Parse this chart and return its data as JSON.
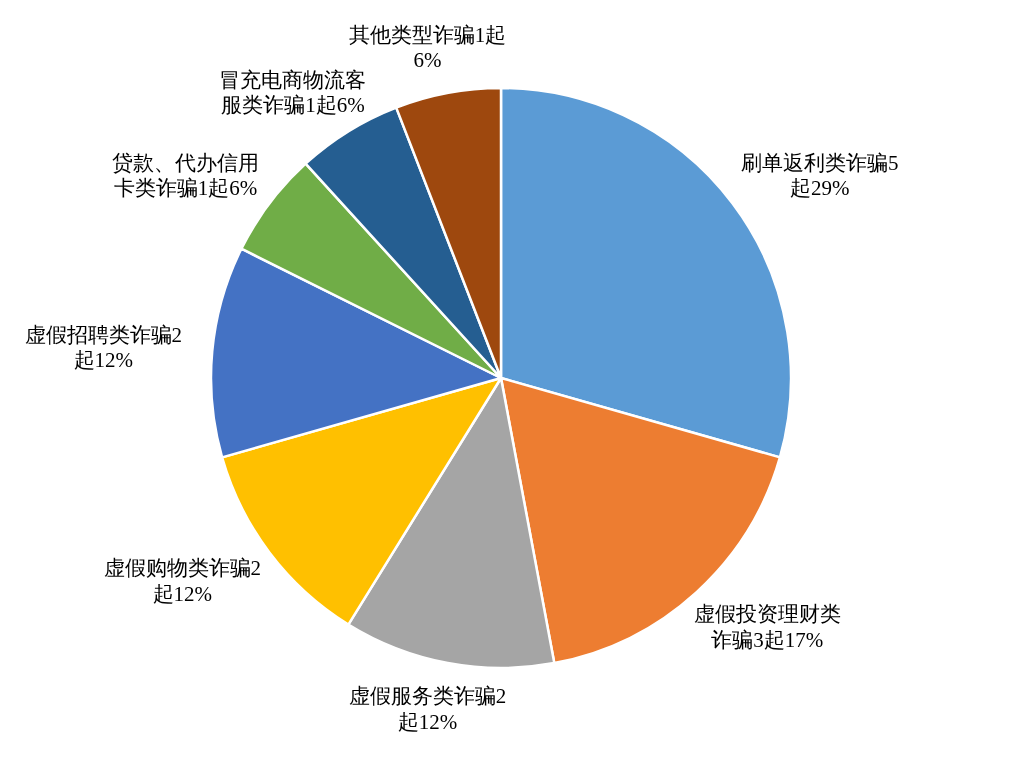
{
  "chart_data": {
    "type": "pie",
    "categories": [
      "刷单返利类诈骗5起29%",
      "虚假投资理财类诈骗3起17%",
      "虚假服务类诈骗2起12%",
      "虚假购物类诈骗2起12%",
      "虚假招聘类诈骗2起12%",
      "贷款、代办信用卡类诈骗1起6%",
      "冒充电商物流客服类诈骗1起6%",
      "其他类型诈骗1起6%"
    ],
    "values": [
      5,
      3,
      2,
      2,
      2,
      1,
      1,
      1
    ],
    "colors": [
      "#5b9bd5",
      "#ed7d31",
      "#a5a5a5",
      "#ffc000",
      "#4472c4",
      "#70ad47",
      "#255e91",
      "#9e480e"
    ]
  }
}
